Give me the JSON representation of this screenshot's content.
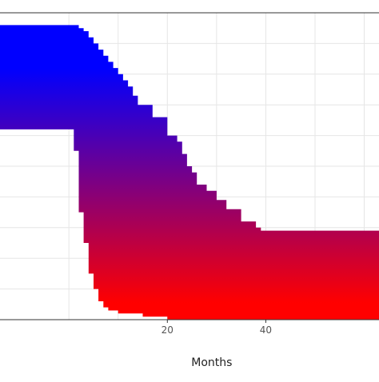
{
  "chart_data": {
    "type": "area",
    "xlabel": "Months",
    "xlim": [
      -14,
      63
    ],
    "ylim": [
      0,
      1
    ],
    "grid": true,
    "x_ticks": [
      20,
      40
    ],
    "colors": {
      "upper": "#0000ff",
      "lower": "#ff0000",
      "panel": "#ffffff",
      "grid": "#e6e6e6",
      "frame": "#333333"
    },
    "series": [
      {
        "role": "upper",
        "x": [
          -14,
          0,
          2,
          3,
          4,
          5,
          6,
          7,
          8,
          9,
          10,
          11,
          12,
          13,
          14,
          17,
          20,
          22,
          23,
          24,
          25,
          26,
          28,
          30,
          32,
          35,
          38,
          39,
          40,
          63
        ],
        "y": [
          0.96,
          0.96,
          0.95,
          0.94,
          0.92,
          0.9,
          0.88,
          0.86,
          0.84,
          0.82,
          0.8,
          0.78,
          0.76,
          0.73,
          0.7,
          0.66,
          0.6,
          0.58,
          0.54,
          0.5,
          0.48,
          0.44,
          0.42,
          0.39,
          0.36,
          0.32,
          0.3,
          0.29,
          0.29,
          0.29
        ]
      },
      {
        "role": "lower",
        "x": [
          -14,
          0,
          1,
          2,
          3,
          4,
          5,
          6,
          7,
          8,
          10,
          15,
          20,
          30,
          63
        ],
        "y": [
          0.62,
          0.62,
          0.55,
          0.35,
          0.25,
          0.15,
          0.1,
          0.06,
          0.04,
          0.03,
          0.02,
          0.01,
          0.0,
          0.0,
          0.0
        ]
      }
    ]
  }
}
